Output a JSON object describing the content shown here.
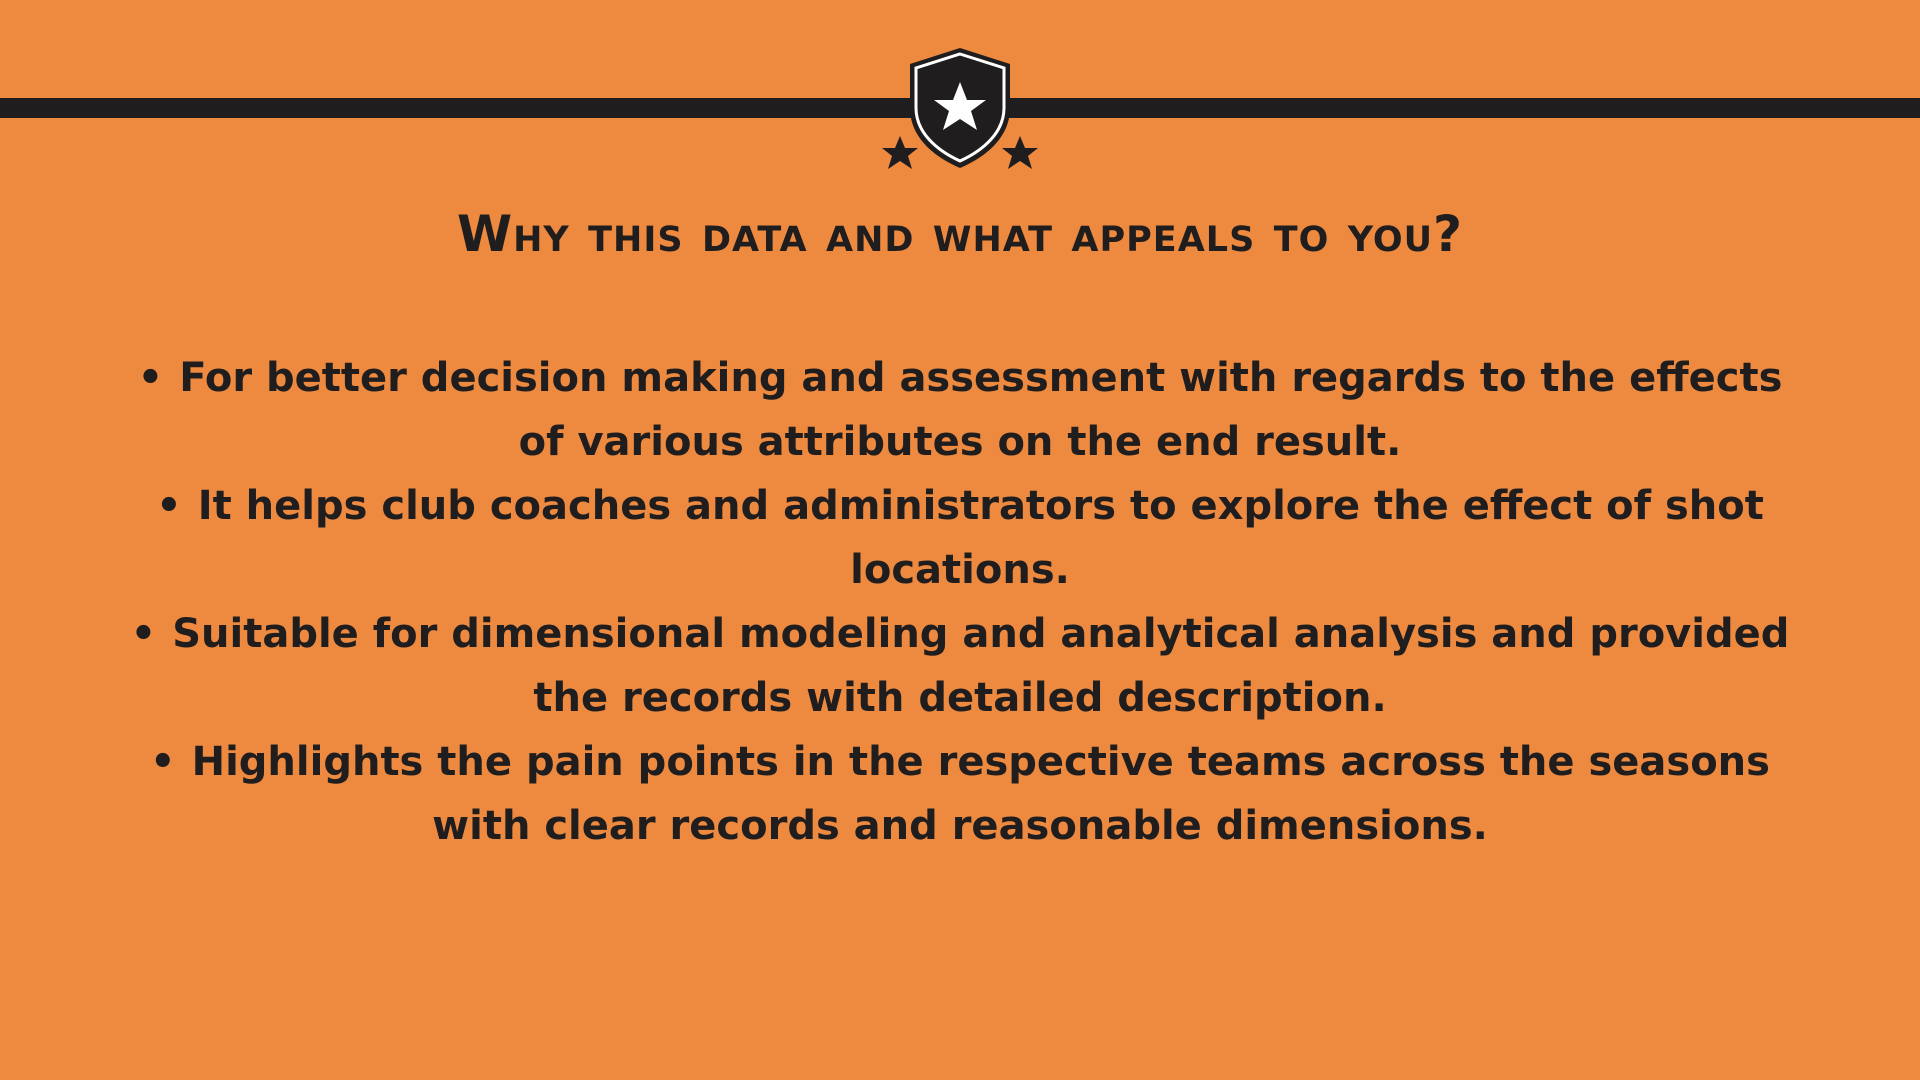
{
  "colors": {
    "background": "#EE8A40",
    "ink": "#1F1D1E",
    "star": "#FFFFFF"
  },
  "header": {
    "icon": "shield-star-icon",
    "title": "Why this data and what appeals to you?"
  },
  "bullets": [
    {
      "marker": "•",
      "text": "For better decision making and assessment with regards to the effects of various attributes on the end result."
    },
    {
      "marker": "•",
      "text": "It helps club coaches and administrators to explore the effect of shot locations."
    },
    {
      "marker": "•",
      "text": "Suitable for dimensional modeling and analytical analysis and provided the records with detailed description."
    },
    {
      "marker": "•",
      "text": "Highlights the pain points in the respective teams across the seasons with clear records and reasonable dimensions."
    }
  ]
}
